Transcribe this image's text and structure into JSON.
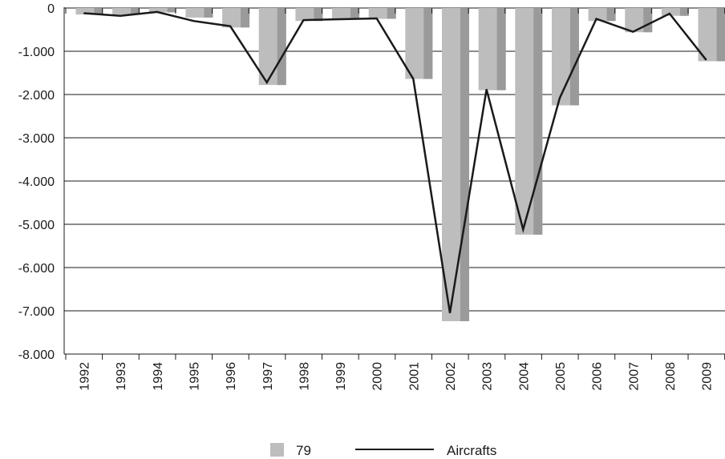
{
  "chart_data": {
    "type": "bar",
    "categories": [
      "1992",
      "1993",
      "1994",
      "1995",
      "1996",
      "1997",
      "1998",
      "1999",
      "2000",
      "2001",
      "2002",
      "2003",
      "2004",
      "2005",
      "2006",
      "2007",
      "2008",
      "2009"
    ],
    "series": [
      {
        "name": "79",
        "type": "bar",
        "color": "#bdbdbd",
        "shade_color": "#9a9a9a",
        "values": [
          -150,
          -150,
          -100,
          -220,
          -450,
          -1780,
          -300,
          -260,
          -250,
          -1640,
          -7240,
          -1900,
          -5240,
          -2250,
          -300,
          -560,
          -180,
          -1230
        ]
      },
      {
        "name": "Aircrafts",
        "type": "line",
        "color": "#1a1a1a",
        "values": [
          -120,
          -180,
          -90,
          -300,
          -420,
          -1720,
          -280,
          -260,
          -240,
          -1640,
          -7050,
          -1880,
          -5120,
          -2080,
          -250,
          -550,
          -130,
          -1200
        ]
      }
    ],
    "ylim": [
      -8000,
      0
    ],
    "yticks": [
      0,
      -1000,
      -2000,
      -3000,
      -4000,
      -5000,
      -6000,
      -7000,
      -8000
    ],
    "ytick_labels": [
      "0",
      "-1.000",
      "-2.000",
      "-3.000",
      "-4.000",
      "-5.000",
      "-6.000",
      "-7.000",
      "-8.000"
    ],
    "grid": true,
    "legend_position": "bottom"
  },
  "legend": {
    "bar_label": "79",
    "line_label": "Aircrafts"
  }
}
